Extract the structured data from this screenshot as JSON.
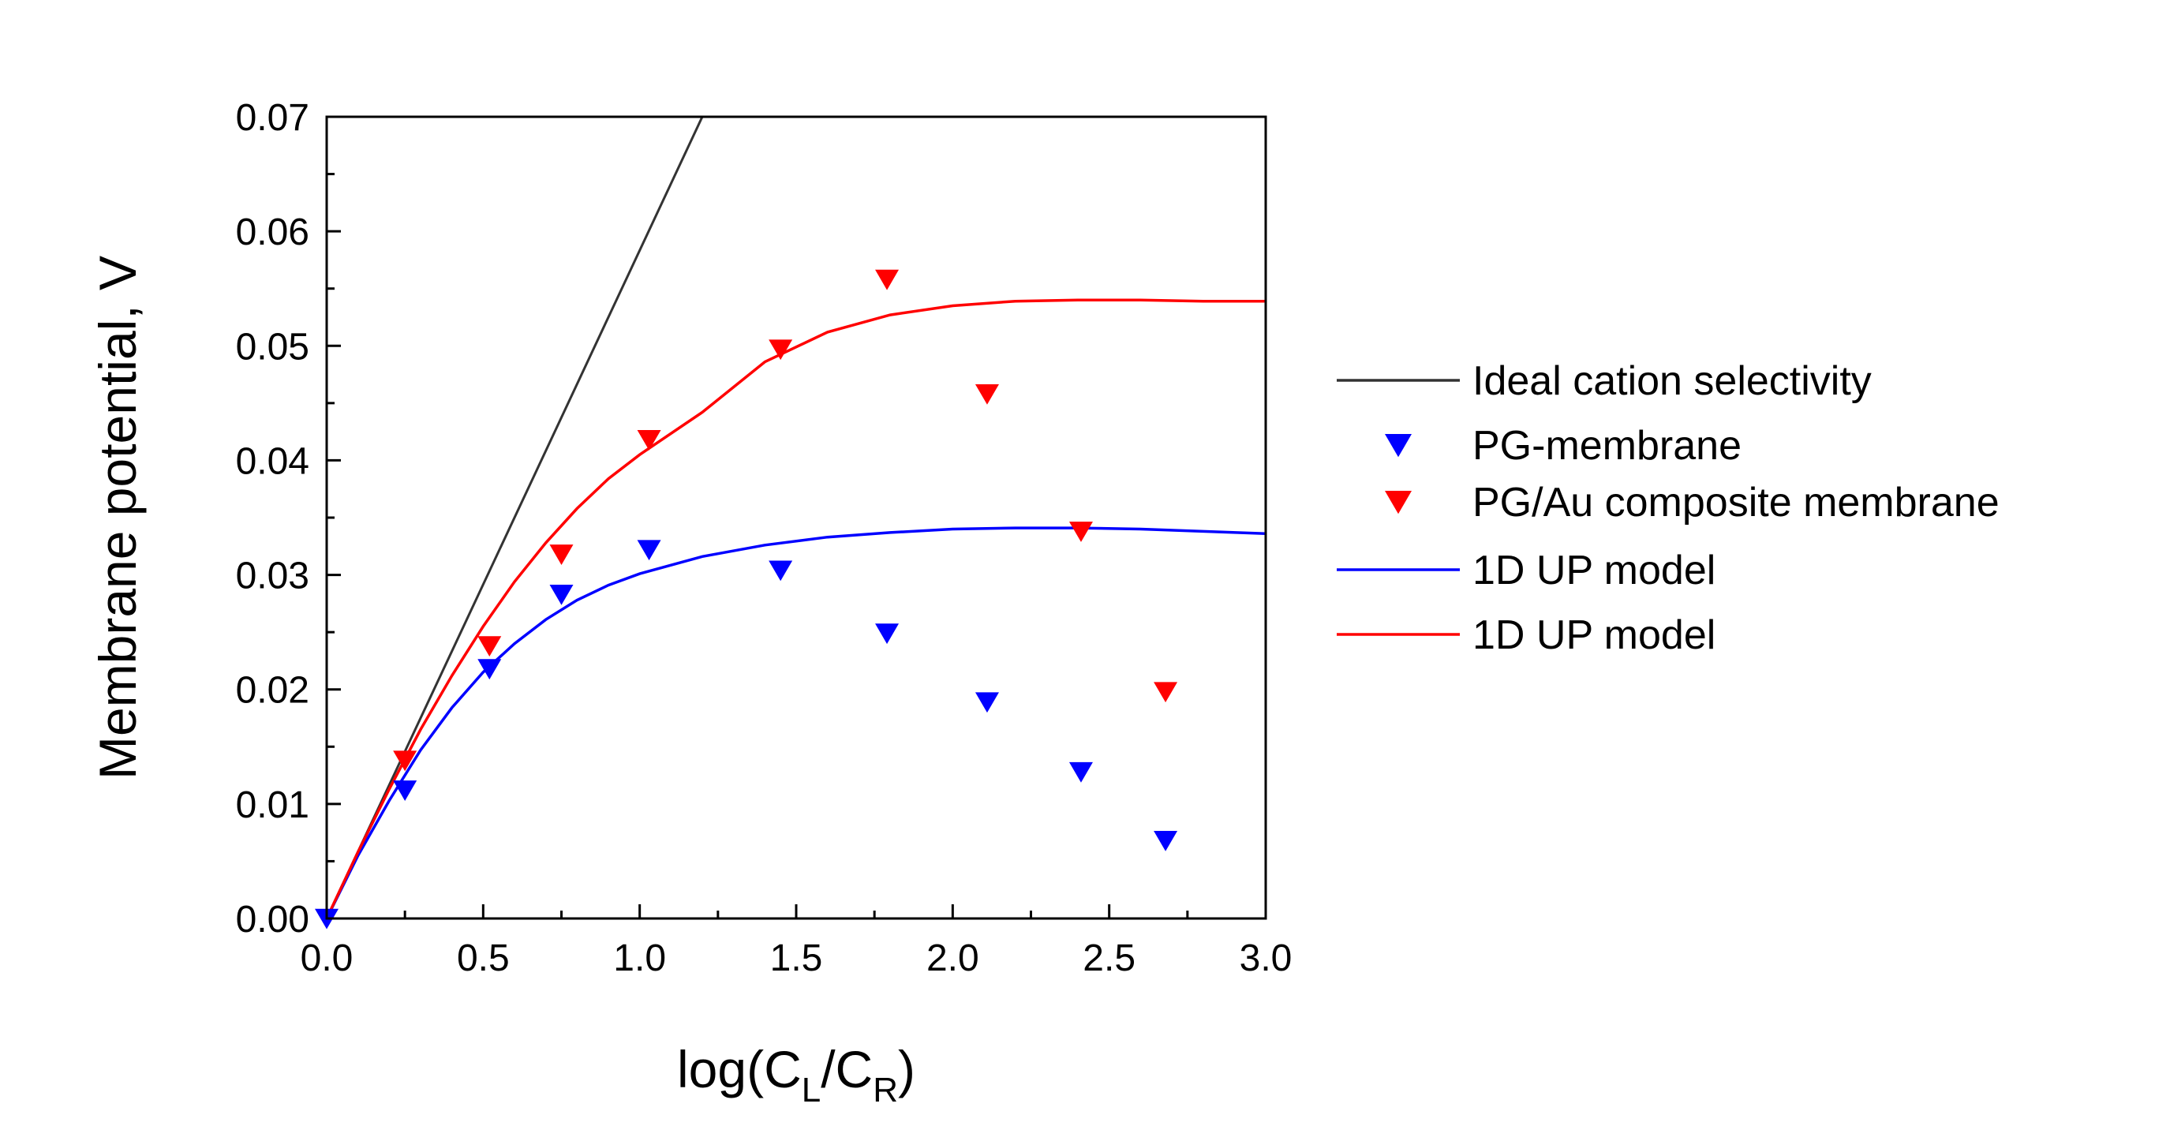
{
  "chart_data": {
    "type": "scatter",
    "title": "",
    "xlabel": "log(C_L/C_R)",
    "xlabel_parts": {
      "prefix": "log(C",
      "sub1": "L",
      "mid": "/C",
      "sub2": "R",
      "suffix": ")"
    },
    "ylabel": "Membrane potential, V",
    "xlim": [
      0.0,
      3.0
    ],
    "ylim": [
      0.0,
      0.07
    ],
    "x_ticks": [
      0.0,
      0.5,
      1.0,
      1.5,
      2.0,
      2.5,
      3.0
    ],
    "x_tick_labels": [
      "0.0",
      "0.5",
      "1.0",
      "1.5",
      "2.0",
      "2.5",
      "3.0"
    ],
    "y_ticks": [
      0.0,
      0.01,
      0.02,
      0.03,
      0.04,
      0.05,
      0.06,
      0.07
    ],
    "y_tick_labels": [
      "0.00",
      "0.01",
      "0.02",
      "0.03",
      "0.04",
      "0.05",
      "0.06",
      "0.07"
    ],
    "grid": false,
    "legend_position": "right-outside",
    "series": [
      {
        "name": "Ideal cation selectivity",
        "kind": "line",
        "color": "#333333",
        "x": [
          0.0,
          1.2
        ],
        "y": [
          0.0,
          0.07
        ]
      },
      {
        "name": "PG-membrane",
        "kind": "marker",
        "marker": "triangle-down",
        "color": "#0000ff",
        "x": [
          0.0,
          0.25,
          0.52,
          0.75,
          1.03,
          1.45,
          1.79,
          2.11,
          2.41,
          2.68
        ],
        "y": [
          0.0,
          0.0112,
          0.0218,
          0.0283,
          0.0322,
          0.0304,
          0.0249,
          0.0189,
          0.0128,
          0.0068
        ]
      },
      {
        "name": "PG/Au composite membrane",
        "kind": "marker",
        "marker": "triangle-down",
        "color": "#ff0000",
        "x": [
          0.25,
          0.52,
          0.75,
          1.03,
          1.45,
          1.79,
          2.11,
          2.41,
          2.68
        ],
        "y": [
          0.0138,
          0.0238,
          0.0318,
          0.0418,
          0.0497,
          0.0558,
          0.0458,
          0.0338,
          0.0198
        ]
      },
      {
        "name": "1D UP model",
        "kind": "line",
        "color": "#0000ff",
        "x": [
          0.0,
          0.1,
          0.2,
          0.3,
          0.4,
          0.5,
          0.6,
          0.7,
          0.8,
          0.9,
          1.0,
          1.2,
          1.4,
          1.6,
          1.8,
          2.0,
          2.2,
          2.4,
          2.6,
          2.8,
          3.0
        ],
        "y": [
          0.0,
          0.0055,
          0.0103,
          0.0147,
          0.0184,
          0.0215,
          0.024,
          0.0261,
          0.0278,
          0.0291,
          0.0301,
          0.0316,
          0.0326,
          0.0333,
          0.0337,
          0.034,
          0.0341,
          0.0341,
          0.034,
          0.0338,
          0.0336
        ]
      },
      {
        "name": "1D UP model",
        "kind": "line",
        "color": "#ff0000",
        "x": [
          0.0,
          0.1,
          0.2,
          0.3,
          0.4,
          0.5,
          0.6,
          0.7,
          0.8,
          0.9,
          1.0,
          1.2,
          1.4,
          1.6,
          1.8,
          2.0,
          2.2,
          2.4,
          2.6,
          2.8,
          3.0
        ],
        "y": [
          0.0,
          0.0058,
          0.0113,
          0.0165,
          0.0212,
          0.0255,
          0.0294,
          0.0328,
          0.0358,
          0.0384,
          0.0405,
          0.0442,
          0.0486,
          0.0512,
          0.0527,
          0.0535,
          0.0539,
          0.054,
          0.054,
          0.0539,
          0.0539
        ]
      }
    ]
  }
}
